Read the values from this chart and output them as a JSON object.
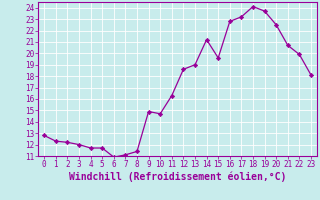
{
  "x": [
    0,
    1,
    2,
    3,
    4,
    5,
    6,
    7,
    8,
    9,
    10,
    11,
    12,
    13,
    14,
    15,
    16,
    17,
    18,
    19,
    20,
    21,
    22,
    23
  ],
  "y": [
    12.8,
    12.3,
    12.2,
    12.0,
    11.7,
    11.7,
    10.9,
    11.1,
    11.4,
    14.9,
    14.7,
    16.3,
    18.6,
    19.0,
    21.2,
    19.6,
    22.8,
    23.2,
    24.1,
    23.7,
    22.5,
    20.7,
    19.9,
    18.1
  ],
  "line_color": "#990099",
  "marker": "D",
  "marker_size": 2.2,
  "bg_color": "#c8ecec",
  "grid_color": "#b0d0d0",
  "xlabel": "Windchill (Refroidissement éolien,°C)",
  "ylabel": "",
  "ylim": [
    11,
    24.5
  ],
  "xlim": [
    -0.5,
    23.5
  ],
  "yticks": [
    11,
    12,
    13,
    14,
    15,
    16,
    17,
    18,
    19,
    20,
    21,
    22,
    23,
    24
  ],
  "xticks": [
    0,
    1,
    2,
    3,
    4,
    5,
    6,
    7,
    8,
    9,
    10,
    11,
    12,
    13,
    14,
    15,
    16,
    17,
    18,
    19,
    20,
    21,
    22,
    23
  ],
  "tick_color": "#990099",
  "tick_fontsize": 5.5,
  "xlabel_fontsize": 7.0,
  "spine_color": "#990099",
  "linewidth": 0.9
}
